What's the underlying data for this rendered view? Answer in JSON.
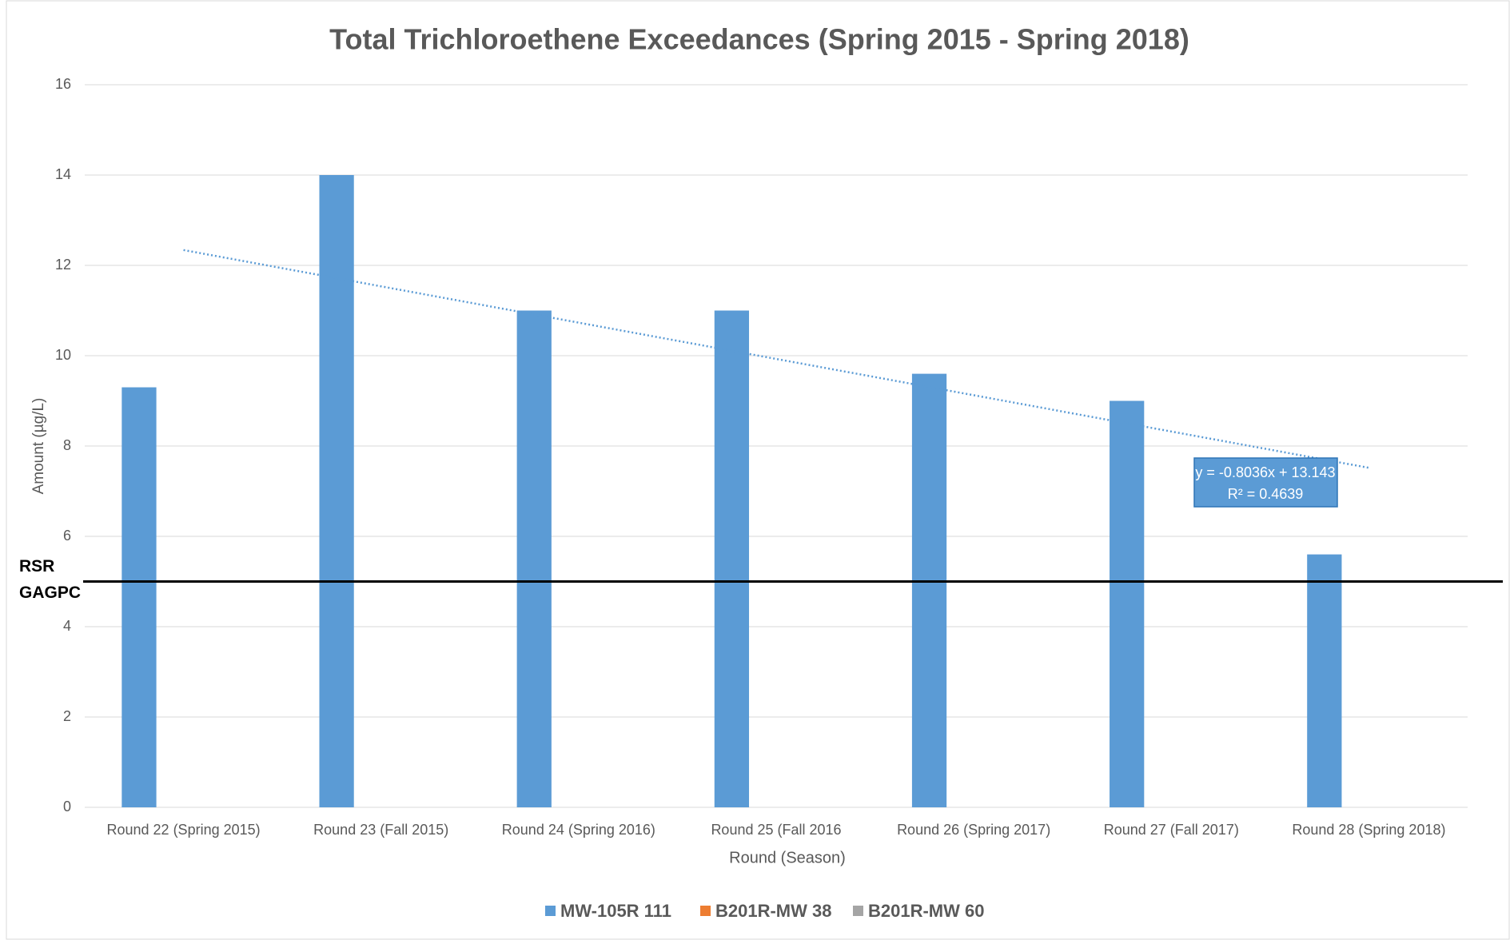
{
  "chart_data": {
    "type": "bar",
    "title": "Total Trichloroethene Exceedances (Spring 2015 - Spring 2018)",
    "x_label": "Round (Season)",
    "y_label": "Amount (µg/L)",
    "categories": [
      "Round 22 (Spring 2015)",
      "Round 23 (Fall 2015)",
      "Round 24 (Spring 2016)",
      "Round 25 (Fall 2016",
      "Round 26 (Spring 2017)",
      "Round 27 (Fall 2017)",
      "Round 28 (Spring 2018)"
    ],
    "series": [
      {
        "name": "MW-105R 111",
        "color": "#5b9bd5",
        "values": [
          9.3,
          14,
          11,
          11,
          9.6,
          9,
          5.6
        ]
      },
      {
        "name": "B201R-MW 38",
        "color": "#ed7d31",
        "values": [
          null,
          null,
          null,
          null,
          null,
          null,
          null
        ]
      },
      {
        "name": "B201R-MW 60",
        "color": "#a5a5a5",
        "values": [
          null,
          null,
          null,
          null,
          null,
          null,
          null
        ]
      }
    ],
    "ylim": [
      0,
      16
    ],
    "yticks": [
      0,
      2,
      4,
      6,
      8,
      10,
      12,
      14,
      16
    ],
    "grid": true,
    "legend": "bottom",
    "trendline": {
      "slope": -0.8036,
      "intercept": 13.143,
      "color": "#5b9bd5",
      "equation": "y = -0.8036x + 13.143",
      "r2": "R² = 0.4639"
    },
    "reference_line": {
      "value": 5,
      "labels": [
        "RSR",
        "GAGPC"
      ],
      "color": "#000000"
    }
  }
}
